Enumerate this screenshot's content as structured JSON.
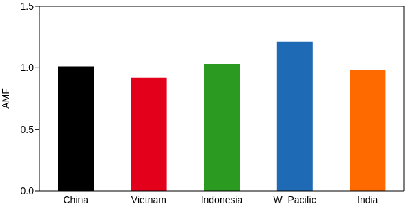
{
  "chart_data": {
    "type": "bar",
    "categories": [
      "China",
      "Vietnam",
      "Indonesia",
      "W_Pacific",
      "India"
    ],
    "values": [
      1.01,
      0.92,
      1.03,
      1.21,
      0.98
    ],
    "colors": [
      "#000000",
      "#e2001a",
      "#2a9a20",
      "#1f6ab4",
      "#ff6a00"
    ],
    "y_label": "AMF",
    "ylim": [
      0,
      1.5
    ],
    "yticks": [
      {
        "value": 0,
        "label": "0.0"
      },
      {
        "value": 0.5,
        "label": "0.5"
      },
      {
        "value": 1,
        "label": "1.0"
      },
      {
        "value": 1.5,
        "label": "1.5"
      }
    ],
    "grid": false
  }
}
